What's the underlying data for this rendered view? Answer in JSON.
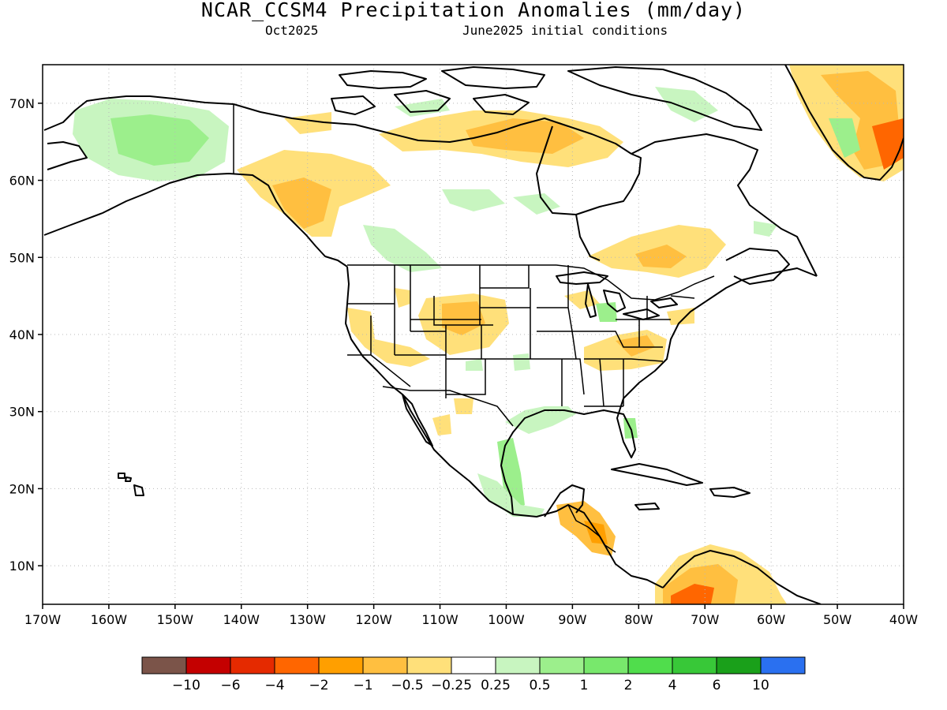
{
  "title": "NCAR_CCSM4 Precipitation Anomalies (mm/day)",
  "subtitle_left": "Oct2025",
  "subtitle_right": "June2025 initial conditions",
  "map": {
    "lon_ticks": [
      "170W",
      "160W",
      "150W",
      "140W",
      "130W",
      "120W",
      "110W",
      "100W",
      "90W",
      "80W",
      "70W",
      "60W",
      "50W",
      "40W"
    ],
    "lat_ticks": [
      "70N",
      "60N",
      "50N",
      "40N",
      "30N",
      "20N",
      "10N"
    ],
    "lon_range": [
      -170,
      -40
    ],
    "lat_range": [
      5,
      75
    ]
  },
  "colorbar": {
    "colors": [
      "#7b5449",
      "#c40000",
      "#e52a00",
      "#ff6600",
      "#ff9f00",
      "#ffbf40",
      "#ffe07a",
      "#ffffff",
      "#c8f5c0",
      "#9cef8c",
      "#78e86c",
      "#50dd4c",
      "#38c838",
      "#1aa01a",
      "#2a70f0"
    ],
    "labels": [
      "−10",
      "−6",
      "−4",
      "−2",
      "−1",
      "−0.5",
      "−0.25",
      "0.25",
      "0.5",
      "1",
      "2",
      "4",
      "6",
      "10"
    ]
  }
}
